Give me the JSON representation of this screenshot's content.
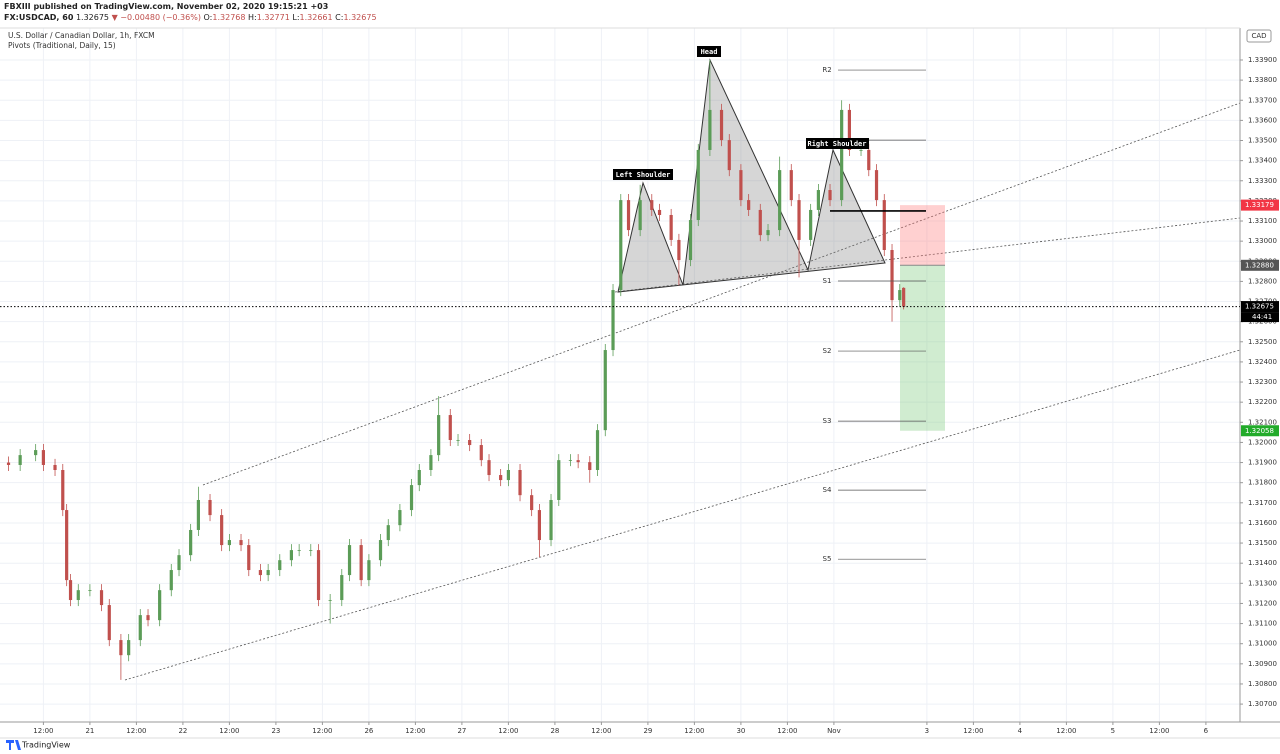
{
  "header": {
    "publisher": "FBXIII published on TradingView.com, November 02, 2020 19:15:21 +03",
    "symbol": "FX:USDCAD, 60",
    "price": "1.32675",
    "change": "▼ −0.00480 (−0.36%)",
    "ohlc": [
      [
        "O:",
        "1.32768"
      ],
      [
        "H:",
        "1.32771"
      ],
      [
        "L:",
        "1.32661"
      ],
      [
        "C:",
        "1.32675"
      ]
    ],
    "brand": "TradingView"
  },
  "chart_data": {
    "type": "candlestick",
    "title": "U.S. Dollar / Canadian Dollar, 1h, FXCM",
    "subtitle": "Pivots (Traditional, Daily, 15)",
    "currency": "CAD",
    "annotations": [
      "Left Shoulder",
      "Head",
      "Right Shoulder"
    ],
    "up_color": "#5b9c57",
    "down_color": "#c0504d",
    "grid": true,
    "x": [
      3,
      6,
      10,
      12,
      15,
      17,
      18,
      19,
      21,
      24,
      27,
      29,
      32,
      34,
      37,
      39,
      42,
      45,
      47,
      50,
      52,
      55,
      58,
      60,
      63,
      65,
      68,
      70,
      73,
      76,
      78,
      81,
      83,
      86,
      89,
      91,
      94,
      96,
      99,
      101,
      104,
      107,
      109,
      112,
      114,
      117,
      119,
      122,
      125,
      127,
      130,
      132,
      135,
      138,
      140,
      143,
      145,
      148,
      150,
      153,
      155,
      157,
      159,
      161,
      163,
      166,
      169,
      171,
      174,
      176,
      179,
      181,
      184,
      187,
      189,
      192,
      194,
      197,
      199,
      202,
      205,
      207,
      210,
      212,
      215,
      218,
      220,
      223,
      225,
      227,
      229,
      231,
      233,
      234
    ],
    "open": [
      1.319,
      1.31888,
      1.31937,
      1.31962,
      1.31888,
      1.31863,
      1.31664,
      1.31316,
      1.31217,
      1.31266,
      1.31266,
      1.31192,
      1.31018,
      1.30943,
      1.31018,
      1.31142,
      1.31117,
      1.31266,
      1.31366,
      1.3144,
      1.31565,
      1.31714,
      1.31639,
      1.3149,
      1.31515,
      1.3149,
      1.31366,
      1.31341,
      1.31366,
      1.31415,
      1.31465,
      1.31465,
      1.31465,
      1.31217,
      1.31217,
      1.31341,
      1.3149,
      1.31316,
      1.31415,
      1.31515,
      1.31589,
      1.31664,
      1.31788,
      1.31863,
      1.31937,
      1.32136,
      1.32012,
      1.32012,
      1.31987,
      1.31912,
      1.31838,
      1.31813,
      1.31863,
      1.31738,
      1.31664,
      1.31515,
      1.31714,
      1.31912,
      1.31912,
      1.31902,
      1.31863,
      1.32061,
      1.32459,
      1.32757,
      1.33204,
      1.33055,
      1.33204,
      1.33155,
      1.3313,
      1.33006,
      1.32906,
      1.33105,
      1.33453,
      1.33652,
      1.33502,
      1.33353,
      1.33204,
      1.33155,
      1.3303,
      1.33055,
      1.33353,
      1.33204,
      1.33006,
      1.33155,
      1.33254,
      1.33204,
      1.33652,
      1.33453,
      1.33453,
      1.33353,
      1.33204,
      1.32956,
      1.32707,
      1.32768
    ],
    "high": [
      1.3193,
      1.31967,
      1.31992,
      1.31992,
      1.31918,
      1.31893,
      1.31694,
      1.31346,
      1.31296,
      1.31296,
      1.31296,
      1.31222,
      1.31048,
      1.31048,
      1.31172,
      1.31172,
      1.31296,
      1.31396,
      1.3147,
      1.31595,
      1.3178,
      1.31744,
      1.31669,
      1.31545,
      1.31545,
      1.3152,
      1.31396,
      1.31396,
      1.31445,
      1.31495,
      1.31495,
      1.31495,
      1.31495,
      1.31247,
      1.31371,
      1.3152,
      1.3152,
      1.31445,
      1.31545,
      1.31619,
      1.31694,
      1.31818,
      1.31893,
      1.31967,
      1.3223,
      1.32166,
      1.32042,
      1.32042,
      1.32017,
      1.31942,
      1.31868,
      1.31893,
      1.31893,
      1.31768,
      1.31694,
      1.31744,
      1.31942,
      1.31942,
      1.31942,
      1.31932,
      1.32091,
      1.32489,
      1.32787,
      1.33234,
      1.33234,
      1.3328,
      1.33234,
      1.33185,
      1.3316,
      1.33036,
      1.33135,
      1.33483,
      1.339,
      1.33682,
      1.33532,
      1.33383,
      1.33234,
      1.33185,
      1.33085,
      1.3342,
      1.33383,
      1.33234,
      1.33185,
      1.33284,
      1.33284,
      1.337,
      1.33682,
      1.33483,
      1.33483,
      1.33383,
      1.33234,
      1.32986,
      1.32787,
      1.32771
    ],
    "low": [
      1.31858,
      1.31858,
      1.31907,
      1.31858,
      1.31833,
      1.31634,
      1.31286,
      1.31187,
      1.31187,
      1.31236,
      1.31162,
      1.30988,
      1.3082,
      1.30913,
      1.30988,
      1.31087,
      1.31087,
      1.31236,
      1.31336,
      1.3141,
      1.31535,
      1.31609,
      1.3146,
      1.3146,
      1.3146,
      1.31336,
      1.31311,
      1.31311,
      1.31336,
      1.31385,
      1.31435,
      1.31435,
      1.31187,
      1.311,
      1.31187,
      1.31311,
      1.31286,
      1.31286,
      1.31385,
      1.31485,
      1.31559,
      1.31634,
      1.31758,
      1.31833,
      1.31907,
      1.31982,
      1.31982,
      1.31957,
      1.31882,
      1.31808,
      1.31783,
      1.31783,
      1.31708,
      1.31634,
      1.3143,
      1.31485,
      1.31684,
      1.31882,
      1.31872,
      1.318,
      1.31833,
      1.32031,
      1.32429,
      1.32727,
      1.33025,
      1.33025,
      1.33125,
      1.331,
      1.32976,
      1.3278,
      1.32876,
      1.33075,
      1.33423,
      1.33472,
      1.33323,
      1.33174,
      1.33125,
      1.33,
      1.33,
      1.33025,
      1.33174,
      1.3282,
      1.32976,
      1.33125,
      1.33174,
      1.33174,
      1.33423,
      1.33423,
      1.33323,
      1.33174,
      1.32926,
      1.326,
      1.32677,
      1.32661
    ],
    "close": [
      1.31888,
      1.31937,
      1.31962,
      1.31888,
      1.31863,
      1.31664,
      1.31316,
      1.31217,
      1.31266,
      1.31266,
      1.31192,
      1.31018,
      1.30943,
      1.31018,
      1.31142,
      1.31117,
      1.31266,
      1.31366,
      1.3144,
      1.31565,
      1.31714,
      1.31639,
      1.3149,
      1.31515,
      1.3149,
      1.31366,
      1.31341,
      1.31366,
      1.31415,
      1.31465,
      1.31465,
      1.31465,
      1.31217,
      1.31217,
      1.31341,
      1.3149,
      1.31316,
      1.31415,
      1.31515,
      1.31589,
      1.31664,
      1.31788,
      1.31863,
      1.31937,
      1.32136,
      1.32012,
      1.32012,
      1.31987,
      1.31912,
      1.31838,
      1.31813,
      1.31863,
      1.31738,
      1.31664,
      1.31515,
      1.31714,
      1.31912,
      1.31912,
      1.31902,
      1.31863,
      1.32061,
      1.32459,
      1.32757,
      1.33204,
      1.33055,
      1.33204,
      1.33155,
      1.3313,
      1.33006,
      1.32906,
      1.33105,
      1.33453,
      1.33652,
      1.33502,
      1.33353,
      1.33204,
      1.33155,
      1.3303,
      1.33055,
      1.33353,
      1.33204,
      1.33006,
      1.33155,
      1.33254,
      1.33204,
      1.33652,
      1.33453,
      1.33453,
      1.33353,
      1.33204,
      1.32956,
      1.32707,
      1.32757,
      1.32675
    ],
    "pivots": [
      {
        "label": "R2",
        "value": 1.3385
      },
      {
        "label": null,
        "value": 1.33502
      },
      {
        "label": null,
        "value": 1.3315
      },
      {
        "label": "S1",
        "value": 1.32802
      },
      {
        "label": "S2",
        "value": 1.32454
      },
      {
        "label": "S3",
        "value": 1.32106
      },
      {
        "label": "S4",
        "value": 1.31763
      },
      {
        "label": "S5",
        "value": 1.3142
      }
    ],
    "position": {
      "stop": {
        "value": 1.33179,
        "label": "1.33179"
      },
      "entry": {
        "value": 1.3288,
        "label": "1.32880"
      },
      "target": {
        "value": 1.32058,
        "label": "1.32058"
      }
    },
    "last": {
      "value": 1.32675,
      "label": "1.32675"
    },
    "countdown": "44:41",
    "xlim": [
      0.8,
      320.8
    ],
    "ylim": [
      1.30611,
      1.34059
    ],
    "xticks": [
      {
        "value": 12,
        "label": "12:00"
      },
      {
        "value": 24,
        "label": "21"
      },
      {
        "value": 36,
        "label": "12:00"
      },
      {
        "value": 48,
        "label": "22"
      },
      {
        "value": 60,
        "label": "12:00"
      },
      {
        "value": 72,
        "label": "23"
      },
      {
        "value": 84,
        "label": "12:00"
      },
      {
        "value": 96,
        "label": "26"
      },
      {
        "value": 108,
        "label": "12:00"
      },
      {
        "value": 120,
        "label": "27"
      },
      {
        "value": 132,
        "label": "12:00"
      },
      {
        "value": 144,
        "label": "28"
      },
      {
        "value": 156,
        "label": "12:00"
      },
      {
        "value": 168,
        "label": "29"
      },
      {
        "value": 180,
        "label": "12:00"
      },
      {
        "value": 192,
        "label": "30"
      },
      {
        "value": 204,
        "label": "12:00"
      },
      {
        "value": 216,
        "label": "Nov"
      },
      {
        "value": 240,
        "label": "3"
      },
      {
        "value": 252,
        "label": "12:00"
      },
      {
        "value": 264,
        "label": "4"
      },
      {
        "value": 276,
        "label": "12:00"
      },
      {
        "value": 288,
        "label": "5"
      },
      {
        "value": 300,
        "label": "12:00"
      },
      {
        "value": 312,
        "label": "6"
      }
    ],
    "yticks": [
      {
        "value": 1.307,
        "label": "1.30700"
      },
      {
        "value": 1.308,
        "label": "1.30800"
      },
      {
        "value": 1.309,
        "label": "1.30900"
      },
      {
        "value": 1.31,
        "label": "1.31000"
      },
      {
        "value": 1.311,
        "label": "1.31100"
      },
      {
        "value": 1.312,
        "label": "1.31200"
      },
      {
        "value": 1.313,
        "label": "1.31300"
      },
      {
        "value": 1.314,
        "label": "1.31400"
      },
      {
        "value": 1.315,
        "label": "1.31500"
      },
      {
        "value": 1.316,
        "label": "1.31600"
      },
      {
        "value": 1.317,
        "label": "1.31700"
      },
      {
        "value": 1.318,
        "label": "1.31800"
      },
      {
        "value": 1.319,
        "label": "1.31900"
      },
      {
        "value": 1.32,
        "label": "1.32000"
      },
      {
        "value": 1.321,
        "label": "1.32100"
      },
      {
        "value": 1.322,
        "label": "1.32200"
      },
      {
        "value": 1.323,
        "label": "1.32300"
      },
      {
        "value": 1.324,
        "label": "1.32400"
      },
      {
        "value": 1.325,
        "label": "1.32500"
      },
      {
        "value": 1.326,
        "label": "1.32600"
      },
      {
        "value": 1.327,
        "label": "1.32700"
      },
      {
        "value": 1.328,
        "label": "1.32800"
      },
      {
        "value": 1.329,
        "label": "1.32900"
      },
      {
        "value": 1.33,
        "label": "1.33000"
      },
      {
        "value": 1.331,
        "label": "1.33100"
      },
      {
        "value": 1.332,
        "label": "1.33200"
      },
      {
        "value": 1.333,
        "label": "1.33300"
      },
      {
        "value": 1.334,
        "label": "1.33400"
      },
      {
        "value": 1.335,
        "label": "1.33500"
      },
      {
        "value": 1.336,
        "label": "1.33600"
      },
      {
        "value": 1.337,
        "label": "1.33700"
      },
      {
        "value": 1.338,
        "label": "1.33800"
      },
      {
        "value": 1.339,
        "label": "1.33900"
      }
    ]
  }
}
